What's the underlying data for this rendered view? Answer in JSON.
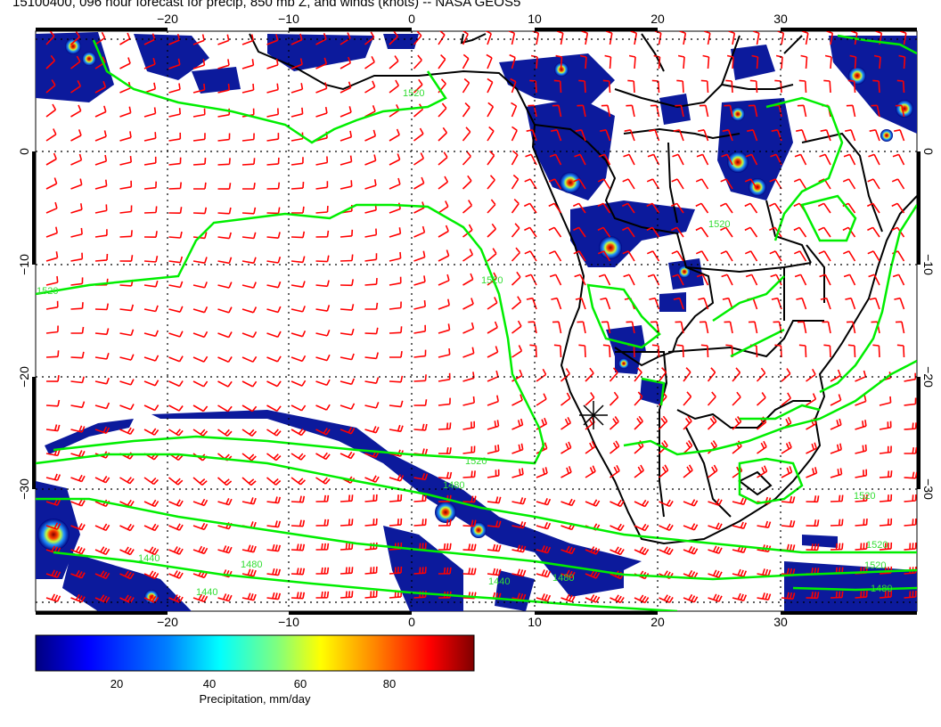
{
  "title": "15100400, 096 hour forecast for precip, 850 mb Z, and winds (knots) -- NASA GEOS5",
  "map": {
    "lon_ticks": [
      "−20",
      "−10",
      "0",
      "10",
      "20",
      "30"
    ],
    "lat_ticks": [
      "0",
      "−10",
      "−20",
      "−30"
    ],
    "contour_labels": [
      "1520",
      "1520",
      "1520",
      "1520",
      "1520",
      "1520",
      "1480",
      "1440",
      "1480",
      "1440",
      "1440",
      "1480",
      "1520",
      "1520",
      "1480"
    ],
    "colors": {
      "coastline": "#000000",
      "winds": "#ff0000",
      "contours": "#00ee00",
      "grid": "#000000"
    }
  },
  "colorbar": {
    "ticks": [
      "20",
      "40",
      "60",
      "80"
    ],
    "label": "Precipitation, mm/day",
    "colors": [
      "#00007f",
      "#0000ff",
      "#007fff",
      "#00ffff",
      "#7fff7f",
      "#ffff00",
      "#ff7f00",
      "#ff0000",
      "#7f0000"
    ]
  }
}
